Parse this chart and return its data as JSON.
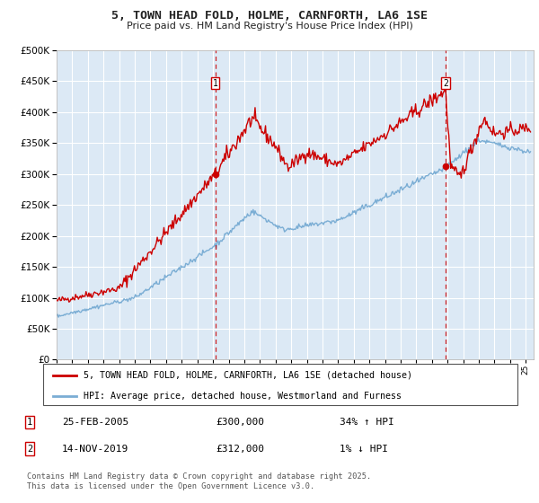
{
  "title": "5, TOWN HEAD FOLD, HOLME, CARNFORTH, LA6 1SE",
  "subtitle": "Price paid vs. HM Land Registry's House Price Index (HPI)",
  "ylim": [
    0,
    500000
  ],
  "yticks": [
    0,
    50000,
    100000,
    150000,
    200000,
    250000,
    300000,
    350000,
    400000,
    450000,
    500000
  ],
  "ytick_labels": [
    "£0",
    "£50K",
    "£100K",
    "£150K",
    "£200K",
    "£250K",
    "£300K",
    "£350K",
    "£400K",
    "£450K",
    "£500K"
  ],
  "xlim_start": 1995.0,
  "xlim_end": 2025.5,
  "transaction1_x": 2005.145,
  "transaction1_y": 300000,
  "transaction2_x": 2019.873,
  "transaction2_y": 312000,
  "vline1_x": 2005.145,
  "vline2_x": 2019.873,
  "red_line_color": "#cc0000",
  "blue_line_color": "#7aadd4",
  "background_color": "#dce9f5",
  "grid_color": "#ffffff",
  "legend1": "5, TOWN HEAD FOLD, HOLME, CARNFORTH, LA6 1SE (detached house)",
  "legend2": "HPI: Average price, detached house, Westmorland and Furness",
  "footnote": "Contains HM Land Registry data © Crown copyright and database right 2025.\nThis data is licensed under the Open Government Licence v3.0.",
  "note1_date": "25-FEB-2005",
  "note1_price": "£300,000",
  "note1_hpi": "34% ↑ HPI",
  "note2_date": "14-NOV-2019",
  "note2_price": "£312,000",
  "note2_hpi": "1% ↓ HPI"
}
